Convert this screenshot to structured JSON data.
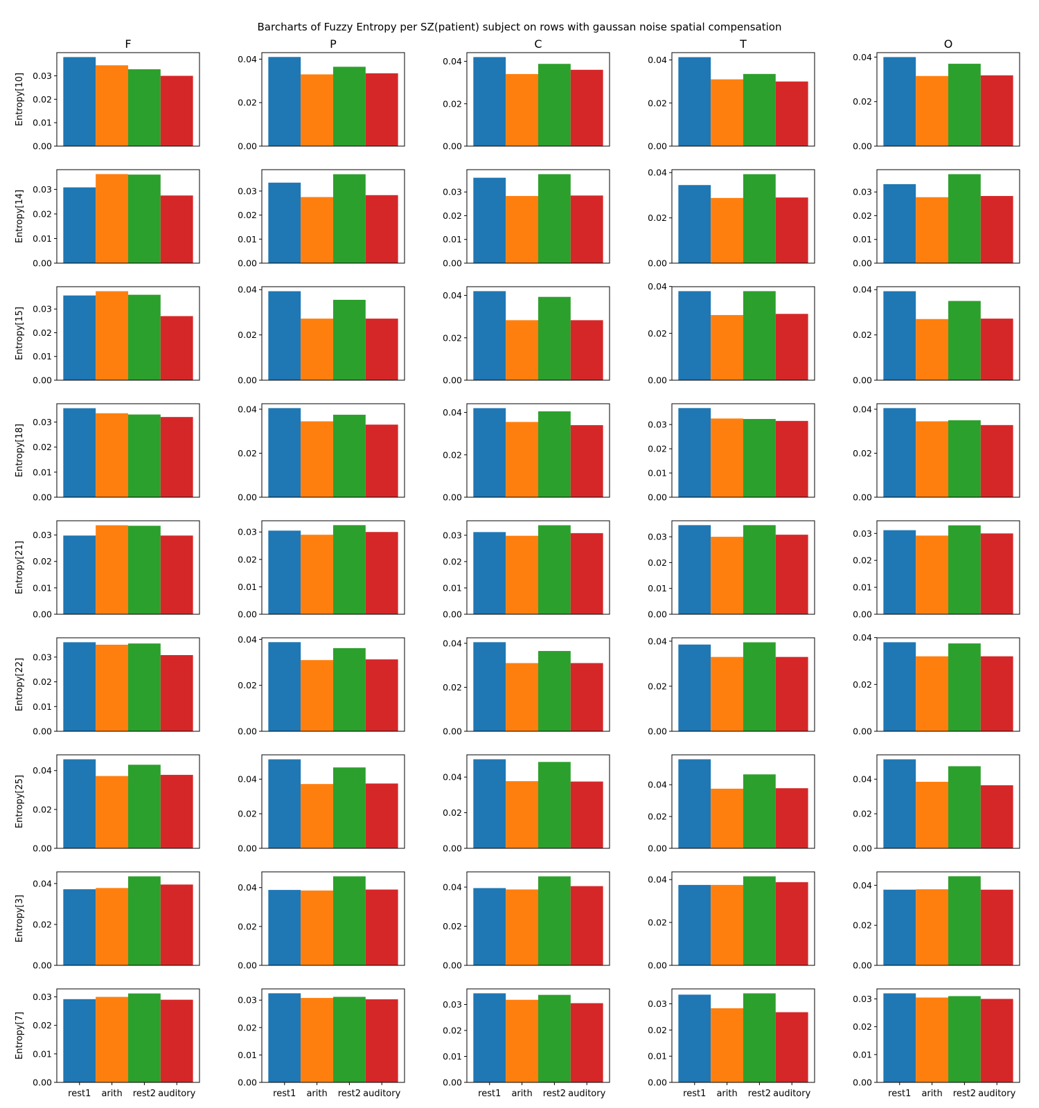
{
  "chart_data": {
    "type": "bar",
    "title": "Barcharts of Fuzzy Entropy per SZ(patient) subject on rows with gaussan noise spatial compensation",
    "columns": [
      "F",
      "P",
      "C",
      "T",
      "O"
    ],
    "rows": [
      "Entropy[10]",
      "Entropy[14]",
      "Entropy[15]",
      "Entropy[18]",
      "Entropy[21]",
      "Entropy[22]",
      "Entropy[25]",
      "Entropy[3]",
      "Entropy[7]"
    ],
    "categories": [
      "rest1",
      "arith",
      "rest2",
      "auditory"
    ],
    "colors": [
      "#1f77b4",
      "#ff7f0e",
      "#2ca02c",
      "#d62728"
    ],
    "grid": false,
    "panels": [
      [
        {
          "values": [
            0.038,
            0.0345,
            0.0328,
            0.03
          ],
          "yticks": [
            "0.00",
            "0.01",
            "0.02",
            "0.03"
          ],
          "ylim": [
            0,
            0.0399
          ]
        },
        {
          "values": [
            0.041,
            0.033,
            0.0365,
            0.0335
          ],
          "yticks": [
            "0.00",
            "0.02",
            "0.04"
          ],
          "ylim": [
            0,
            0.043
          ]
        },
        {
          "values": [
            0.042,
            0.034,
            0.0388,
            0.036
          ],
          "yticks": [
            "0.00",
            "0.02",
            "0.04"
          ],
          "ylim": [
            0,
            0.0441
          ]
        },
        {
          "values": [
            0.0413,
            0.031,
            0.0335,
            0.03
          ],
          "yticks": [
            "0.00",
            "0.02",
            "0.04"
          ],
          "ylim": [
            0,
            0.0434
          ]
        },
        {
          "values": [
            0.04,
            0.0315,
            0.037,
            0.0318
          ],
          "yticks": [
            "0.00",
            "0.02",
            "0.04"
          ],
          "ylim": [
            0,
            0.042
          ]
        }
      ],
      [
        {
          "values": [
            0.0308,
            0.0362,
            0.036,
            0.0275
          ],
          "yticks": [
            "0.00",
            "0.01",
            "0.02",
            "0.03"
          ],
          "ylim": [
            0,
            0.038
          ]
        },
        {
          "values": [
            0.0335,
            0.0275,
            0.037,
            0.0283
          ],
          "yticks": [
            "0.00",
            "0.01",
            "0.02",
            "0.03"
          ],
          "ylim": [
            0,
            0.0389
          ]
        },
        {
          "values": [
            0.036,
            0.0283,
            0.0375,
            0.0285
          ],
          "yticks": [
            "0.00",
            "0.01",
            "0.02",
            "0.03"
          ],
          "ylim": [
            0,
            0.0394
          ]
        },
        {
          "values": [
            0.0345,
            0.0288,
            0.0393,
            0.029
          ],
          "yticks": [
            "0.00",
            "0.02",
            "0.04"
          ],
          "ylim": [
            0,
            0.0413
          ]
        },
        {
          "values": [
            0.0333,
            0.0278,
            0.0375,
            0.0283
          ],
          "yticks": [
            "0.00",
            "0.01",
            "0.02",
            "0.03"
          ],
          "ylim": [
            0,
            0.0394
          ]
        }
      ],
      [
        {
          "values": [
            0.0357,
            0.0375,
            0.036,
            0.027
          ],
          "yticks": [
            "0.00",
            "0.01",
            "0.02",
            "0.03"
          ],
          "ylim": [
            0,
            0.0394
          ]
        },
        {
          "values": [
            0.0393,
            0.0272,
            0.0355,
            0.0272
          ],
          "yticks": [
            "0.00",
            "0.02",
            "0.04"
          ],
          "ylim": [
            0,
            0.0413
          ]
        },
        {
          "values": [
            0.042,
            0.0283,
            0.0393,
            0.0283
          ],
          "yticks": [
            "0.00",
            "0.02",
            "0.04"
          ],
          "ylim": [
            0,
            0.0441
          ]
        },
        {
          "values": [
            0.038,
            0.0278,
            0.038,
            0.0283
          ],
          "yticks": [
            "0.00",
            "0.02",
            "0.04"
          ],
          "ylim": [
            0,
            0.0399
          ]
        },
        {
          "values": [
            0.0393,
            0.027,
            0.035,
            0.0272
          ],
          "yticks": [
            "0.00",
            "0.02",
            "0.04"
          ],
          "ylim": [
            0,
            0.0413
          ]
        }
      ],
      [
        {
          "values": [
            0.0355,
            0.0335,
            0.033,
            0.032
          ],
          "yticks": [
            "0.00",
            "0.01",
            "0.02",
            "0.03"
          ],
          "ylim": [
            0,
            0.0373
          ]
        },
        {
          "values": [
            0.0405,
            0.0345,
            0.0375,
            0.033
          ],
          "yticks": [
            "0.00",
            "0.02",
            "0.04"
          ],
          "ylim": [
            0,
            0.0425
          ]
        },
        {
          "values": [
            0.042,
            0.0355,
            0.0405,
            0.034
          ],
          "yticks": [
            "0.00",
            "0.02",
            "0.04"
          ],
          "ylim": [
            0,
            0.0441
          ]
        },
        {
          "values": [
            0.0368,
            0.0325,
            0.0323,
            0.0315
          ],
          "yticks": [
            "0.00",
            "0.01",
            "0.02",
            "0.03"
          ],
          "ylim": [
            0,
            0.0386
          ]
        },
        {
          "values": [
            0.0405,
            0.0345,
            0.035,
            0.0328
          ],
          "yticks": [
            "0.00",
            "0.02",
            "0.04"
          ],
          "ylim": [
            0,
            0.0425
          ]
        }
      ],
      [
        {
          "values": [
            0.0298,
            0.0337,
            0.0335,
            0.0298
          ],
          "yticks": [
            "0.00",
            "0.01",
            "0.02",
            "0.03"
          ],
          "ylim": [
            0,
            0.0354
          ]
        },
        {
          "values": [
            0.0305,
            0.029,
            0.0325,
            0.03
          ],
          "yticks": [
            "0.00",
            "0.01",
            "0.02",
            "0.03"
          ],
          "ylim": [
            0,
            0.0341
          ]
        },
        {
          "values": [
            0.0312,
            0.0298,
            0.0338,
            0.0308
          ],
          "yticks": [
            "0.00",
            "0.01",
            "0.02",
            "0.03"
          ],
          "ylim": [
            0,
            0.0355
          ]
        },
        {
          "values": [
            0.0345,
            0.03,
            0.0345,
            0.0308
          ],
          "yticks": [
            "0.00",
            "0.01",
            "0.02",
            "0.03"
          ],
          "ylim": [
            0,
            0.0362
          ]
        },
        {
          "values": [
            0.0312,
            0.0292,
            0.033,
            0.03
          ],
          "yticks": [
            "0.00",
            "0.01",
            "0.02",
            "0.03"
          ],
          "ylim": [
            0,
            0.0347
          ]
        }
      ],
      [
        {
          "values": [
            0.036,
            0.035,
            0.0355,
            0.0308
          ],
          "yticks": [
            "0.00",
            "0.01",
            "0.02",
            "0.03"
          ],
          "ylim": [
            0,
            0.0378
          ]
        },
        {
          "values": [
            0.0388,
            0.031,
            0.0362,
            0.0313
          ],
          "yticks": [
            "0.00",
            "0.02",
            "0.04"
          ],
          "ylim": [
            0,
            0.0407
          ]
        },
        {
          "values": [
            0.0405,
            0.031,
            0.0365,
            0.031
          ],
          "yticks": [
            "0.00",
            "0.02",
            "0.04"
          ],
          "ylim": [
            0,
            0.0425
          ]
        },
        {
          "values": [
            0.0385,
            0.033,
            0.0395,
            0.033
          ],
          "yticks": [
            "0.00",
            "0.02",
            "0.04"
          ],
          "ylim": [
            0,
            0.0415
          ]
        },
        {
          "values": [
            0.038,
            0.032,
            0.0375,
            0.032
          ],
          "yticks": [
            "0.00",
            "0.02",
            "0.04"
          ],
          "ylim": [
            0,
            0.0399
          ]
        }
      ],
      [
        {
          "values": [
            0.0458,
            0.0372,
            0.043,
            0.0378
          ],
          "yticks": [
            "0.00",
            "0.02",
            "0.04"
          ],
          "ylim": [
            0,
            0.0481
          ]
        },
        {
          "values": [
            0.0515,
            0.0372,
            0.0468,
            0.0375
          ],
          "yticks": [
            "0.00",
            "0.02",
            "0.04"
          ],
          "ylim": [
            0,
            0.0541
          ]
        },
        {
          "values": [
            0.05,
            0.0377,
            0.0485,
            0.0375
          ],
          "yticks": [
            "0.00",
            "0.02",
            "0.04"
          ],
          "ylim": [
            0,
            0.0525
          ]
        },
        {
          "values": [
            0.056,
            0.0375,
            0.0465,
            0.0378
          ],
          "yticks": [
            "0.00",
            "0.02",
            "0.04"
          ],
          "ylim": [
            0,
            0.0588
          ]
        },
        {
          "values": [
            0.0515,
            0.0385,
            0.0475,
            0.0365
          ],
          "yticks": [
            "0.00",
            "0.02",
            "0.04"
          ],
          "ylim": [
            0,
            0.0541
          ]
        }
      ],
      [
        {
          "values": [
            0.0372,
            0.0378,
            0.0435,
            0.0395
          ],
          "yticks": [
            "0.00",
            "0.02",
            "0.04"
          ],
          "ylim": [
            0,
            0.0457
          ]
        },
        {
          "values": [
            0.0388,
            0.0385,
            0.0458,
            0.039
          ],
          "yticks": [
            "0.00",
            "0.02",
            "0.04"
          ],
          "ylim": [
            0,
            0.0481
          ]
        },
        {
          "values": [
            0.0395,
            0.0388,
            0.0455,
            0.0405
          ],
          "yticks": [
            "0.00",
            "0.02",
            "0.04"
          ],
          "ylim": [
            0,
            0.0478
          ]
        },
        {
          "values": [
            0.0375,
            0.0375,
            0.0415,
            0.0388
          ],
          "yticks": [
            "0.00",
            "0.02",
            "0.04"
          ],
          "ylim": [
            0,
            0.0436
          ]
        },
        {
          "values": [
            0.0378,
            0.038,
            0.0445,
            0.0378
          ],
          "yticks": [
            "0.00",
            "0.02",
            "0.04"
          ],
          "ylim": [
            0,
            0.0467
          ]
        }
      ],
      [
        {
          "values": [
            0.0292,
            0.03,
            0.0312,
            0.029
          ],
          "yticks": [
            "0.00",
            "0.01",
            "0.02",
            "0.03"
          ],
          "ylim": [
            0,
            0.0328
          ]
        },
        {
          "values": [
            0.0325,
            0.0308,
            0.0312,
            0.0303
          ],
          "yticks": [
            "0.00",
            "0.01",
            "0.02",
            "0.03"
          ],
          "ylim": [
            0,
            0.0341
          ]
        },
        {
          "values": [
            0.0343,
            0.0318,
            0.0337,
            0.0305
          ],
          "yticks": [
            "0.00",
            "0.01",
            "0.02",
            "0.03"
          ],
          "ylim": [
            0,
            0.036
          ]
        },
        {
          "values": [
            0.0335,
            0.0283,
            0.034,
            0.0268
          ],
          "yticks": [
            "0.00",
            "0.01",
            "0.02",
            "0.03"
          ],
          "ylim": [
            0,
            0.0357
          ]
        },
        {
          "values": [
            0.032,
            0.0305,
            0.031,
            0.03
          ],
          "yticks": [
            "0.00",
            "0.01",
            "0.02",
            "0.03"
          ],
          "ylim": [
            0,
            0.0336
          ]
        }
      ]
    ]
  }
}
